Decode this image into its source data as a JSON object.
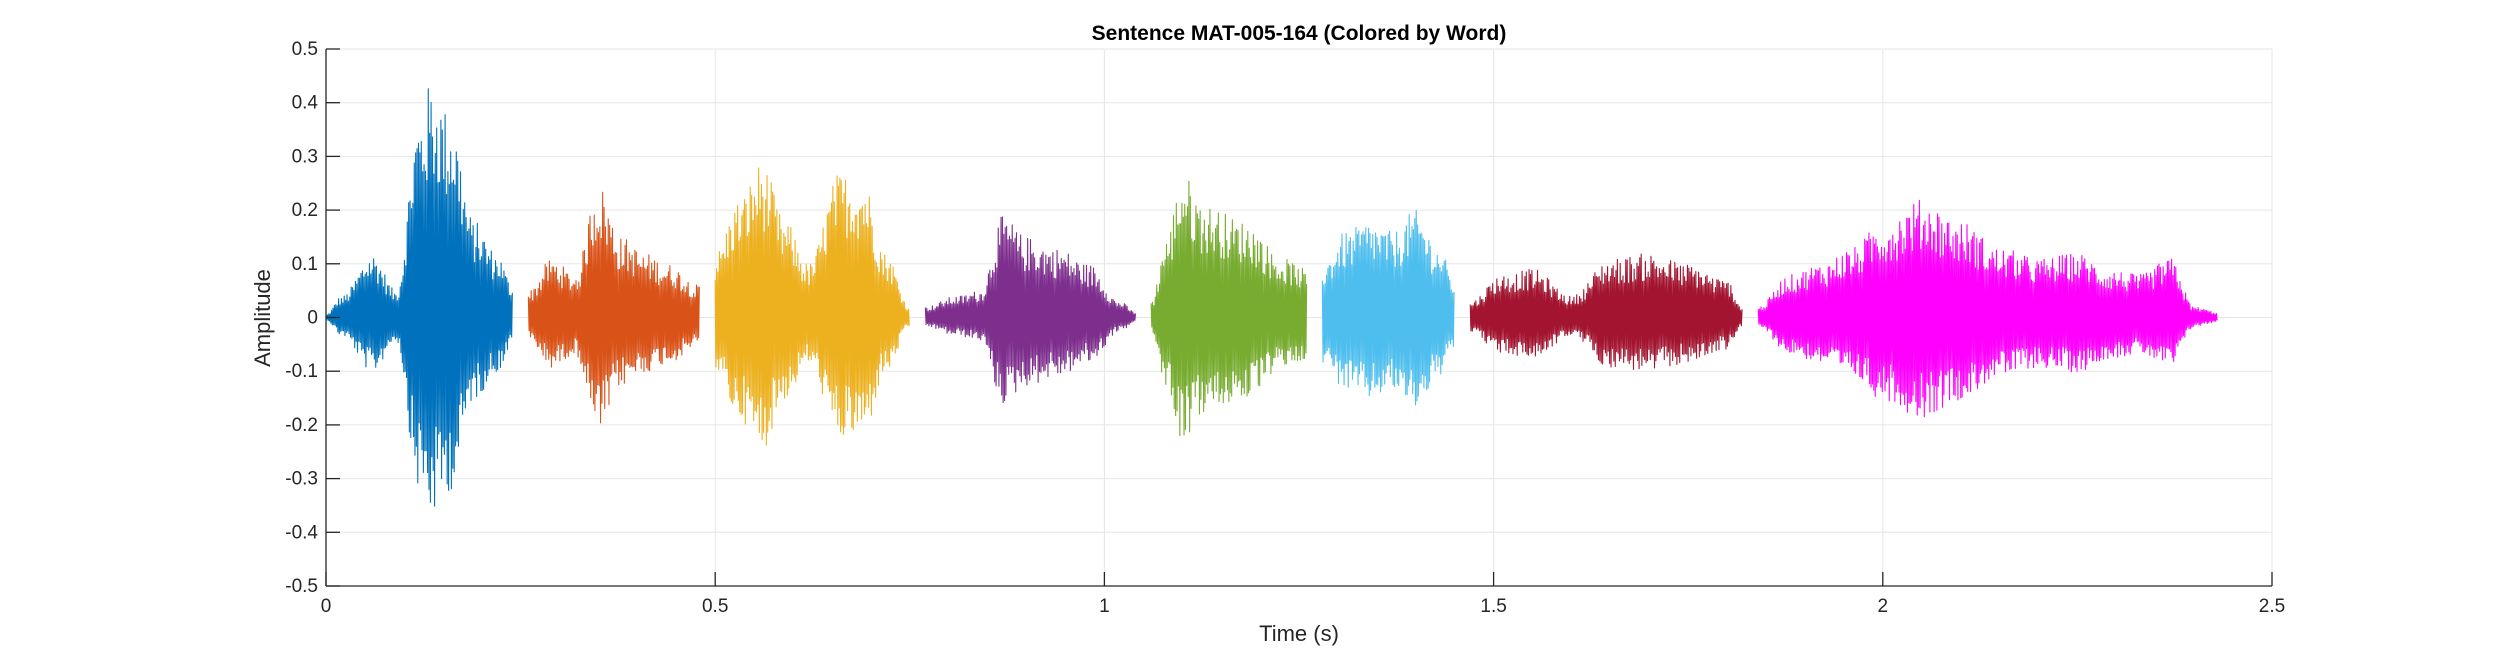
{
  "chart_data": {
    "type": "line",
    "title": "Sentence MAT-005-164 (Colored by Word)",
    "xlabel": "Time (s)",
    "ylabel": "Amplitude",
    "xlim": [
      0,
      2.5
    ],
    "ylim": [
      -0.5,
      0.5
    ],
    "xticks": [
      0,
      0.5,
      1,
      1.5,
      2,
      2.5
    ],
    "xtick_labels": [
      "0",
      "0.5",
      "1",
      "1.5",
      "2",
      "2.5"
    ],
    "yticks": [
      0.5,
      0.4,
      0.3,
      0.2,
      0.1,
      0,
      -0.1,
      -0.2,
      -0.3,
      -0.4,
      -0.5
    ],
    "ytick_labels": [
      "0.5",
      "0.4",
      "0.3",
      "0.2",
      "0.1",
      "0",
      "-0.1",
      "-0.2",
      "-0.3",
      "-0.4",
      "-0.5"
    ],
    "grid": true,
    "series": [
      {
        "color": "#0072BD",
        "t_start": 0.0,
        "t_end": 0.24,
        "envelope": [
          [
            0.0,
            0.005
          ],
          [
            0.02,
            0.04
          ],
          [
            0.06,
            0.12
          ],
          [
            0.09,
            0.05
          ],
          [
            0.12,
            0.38
          ],
          [
            0.135,
            0.44
          ],
          [
            0.16,
            0.38
          ],
          [
            0.19,
            0.18
          ],
          [
            0.22,
            0.12
          ],
          [
            0.24,
            0.06
          ]
        ]
      },
      {
        "color": "#D95319",
        "t_start": 0.26,
        "t_end": 0.48,
        "envelope": [
          [
            0.26,
            0.05
          ],
          [
            0.29,
            0.11
          ],
          [
            0.32,
            0.08
          ],
          [
            0.35,
            0.25
          ],
          [
            0.38,
            0.15
          ],
          [
            0.41,
            0.12
          ],
          [
            0.44,
            0.1
          ],
          [
            0.48,
            0.06
          ]
        ]
      },
      {
        "color": "#EDB120",
        "t_start": 0.5,
        "t_end": 0.75,
        "envelope": [
          [
            0.5,
            0.12
          ],
          [
            0.53,
            0.22
          ],
          [
            0.56,
            0.29
          ],
          [
            0.59,
            0.18
          ],
          [
            0.62,
            0.1
          ],
          [
            0.66,
            0.27
          ],
          [
            0.69,
            0.26
          ],
          [
            0.72,
            0.12
          ],
          [
            0.75,
            0.02
          ]
        ]
      },
      {
        "color": "#7E2F8E",
        "t_start": 0.77,
        "t_end": 1.04,
        "envelope": [
          [
            0.77,
            0.02
          ],
          [
            0.81,
            0.04
          ],
          [
            0.84,
            0.05
          ],
          [
            0.87,
            0.19
          ],
          [
            0.9,
            0.15
          ],
          [
            0.94,
            0.13
          ],
          [
            0.98,
            0.1
          ],
          [
            1.02,
            0.03
          ],
          [
            1.04,
            0.01
          ]
        ]
      },
      {
        "color": "#77AC30",
        "t_start": 1.06,
        "t_end": 1.26,
        "envelope": [
          [
            1.06,
            0.03
          ],
          [
            1.08,
            0.15
          ],
          [
            1.1,
            0.27
          ],
          [
            1.13,
            0.21
          ],
          [
            1.18,
            0.18
          ],
          [
            1.23,
            0.11
          ],
          [
            1.26,
            0.09
          ]
        ]
      },
      {
        "color": "#4DBEEE",
        "t_start": 1.28,
        "t_end": 1.45,
        "envelope": [
          [
            1.28,
            0.1
          ],
          [
            1.31,
            0.16
          ],
          [
            1.34,
            0.18
          ],
          [
            1.37,
            0.16
          ],
          [
            1.4,
            0.2
          ],
          [
            1.43,
            0.13
          ],
          [
            1.45,
            0.07
          ]
        ]
      },
      {
        "color": "#A2142F",
        "t_start": 1.47,
        "t_end": 1.82,
        "envelope": [
          [
            1.47,
            0.03
          ],
          [
            1.51,
            0.08
          ],
          [
            1.55,
            0.09
          ],
          [
            1.6,
            0.04
          ],
          [
            1.65,
            0.11
          ],
          [
            1.7,
            0.12
          ],
          [
            1.75,
            0.1
          ],
          [
            1.8,
            0.07
          ],
          [
            1.82,
            0.02
          ]
        ]
      },
      {
        "color": "#FF00FF",
        "t_start": 1.84,
        "t_end": 2.43,
        "envelope": [
          [
            1.84,
            0.02
          ],
          [
            1.88,
            0.08
          ],
          [
            1.92,
            0.1
          ],
          [
            1.96,
            0.13
          ],
          [
            2.0,
            0.18
          ],
          [
            2.05,
            0.22
          ],
          [
            2.1,
            0.18
          ],
          [
            2.15,
            0.13
          ],
          [
            2.2,
            0.11
          ],
          [
            2.25,
            0.12
          ],
          [
            2.29,
            0.09
          ],
          [
            2.33,
            0.08
          ],
          [
            2.37,
            0.11
          ],
          [
            2.4,
            0.02
          ],
          [
            2.43,
            0.01
          ]
        ]
      }
    ]
  }
}
